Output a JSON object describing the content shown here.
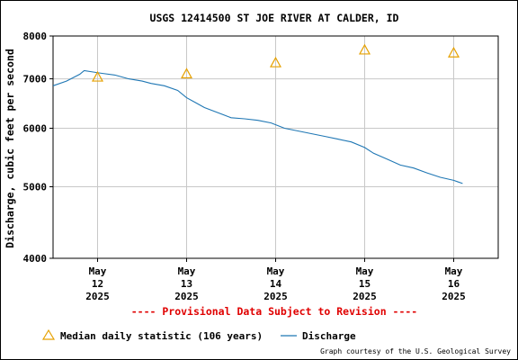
{
  "chart_data": {
    "type": "line",
    "title": "USGS 12414500 ST JOE RIVER AT CALDER, ID",
    "ylabel": "Discharge, cubic feet per second",
    "xlabel": "",
    "y_scale": "log",
    "ylim": [
      4000,
      8000
    ],
    "yticks": [
      "4000",
      "5000",
      "6000",
      "7000",
      "8000"
    ],
    "xlim_days": [
      11.5,
      16.5
    ],
    "xticks": [
      {
        "day": 12,
        "month": "May",
        "date": "12",
        "year": "2025"
      },
      {
        "day": 13,
        "month": "May",
        "date": "13",
        "year": "2025"
      },
      {
        "day": 14,
        "month": "May",
        "date": "14",
        "year": "2025"
      },
      {
        "day": 15,
        "month": "May",
        "date": "15",
        "year": "2025"
      },
      {
        "day": 16,
        "month": "May",
        "date": "16",
        "year": "2025"
      }
    ],
    "grid": true,
    "series": [
      {
        "name": "Discharge",
        "color": "#1f77b4",
        "style": "line",
        "points": [
          [
            11.5,
            6850
          ],
          [
            11.65,
            6950
          ],
          [
            11.8,
            7100
          ],
          [
            11.85,
            7180
          ],
          [
            11.95,
            7150
          ],
          [
            12.05,
            7120
          ],
          [
            12.2,
            7080
          ],
          [
            12.35,
            7000
          ],
          [
            12.5,
            6950
          ],
          [
            12.6,
            6900
          ],
          [
            12.75,
            6850
          ],
          [
            12.9,
            6750
          ],
          [
            13.0,
            6600
          ],
          [
            13.1,
            6500
          ],
          [
            13.2,
            6400
          ],
          [
            13.35,
            6300
          ],
          [
            13.5,
            6200
          ],
          [
            13.65,
            6180
          ],
          [
            13.8,
            6150
          ],
          [
            13.95,
            6100
          ],
          [
            14.1,
            6000
          ],
          [
            14.25,
            5950
          ],
          [
            14.4,
            5900
          ],
          [
            14.55,
            5850
          ],
          [
            14.7,
            5800
          ],
          [
            14.85,
            5750
          ],
          [
            15.0,
            5650
          ],
          [
            15.1,
            5550
          ],
          [
            15.25,
            5450
          ],
          [
            15.4,
            5350
          ],
          [
            15.55,
            5300
          ],
          [
            15.7,
            5220
          ],
          [
            15.85,
            5150
          ],
          [
            16.0,
            5100
          ],
          [
            16.1,
            5050
          ]
        ]
      },
      {
        "name": "Median daily statistic (106 years)",
        "color": "#e6a100",
        "style": "triangle",
        "points": [
          [
            12,
            7030
          ],
          [
            13,
            7100
          ],
          [
            14,
            7350
          ],
          [
            15,
            7650
          ],
          [
            16,
            7580
          ]
        ]
      }
    ],
    "legend_position": "bottom"
  },
  "notice": "---- Provisional Data Subject to Revision ----",
  "legend": {
    "median_label": "Median daily statistic (106 years)",
    "discharge_label": "Discharge"
  },
  "credit": "Graph courtesy of the U.S. Geological Survey",
  "colors": {
    "discharge": "#1f77b4",
    "median": "#e6a100",
    "notice": "#e00000",
    "grid": "#c8c8c8"
  }
}
